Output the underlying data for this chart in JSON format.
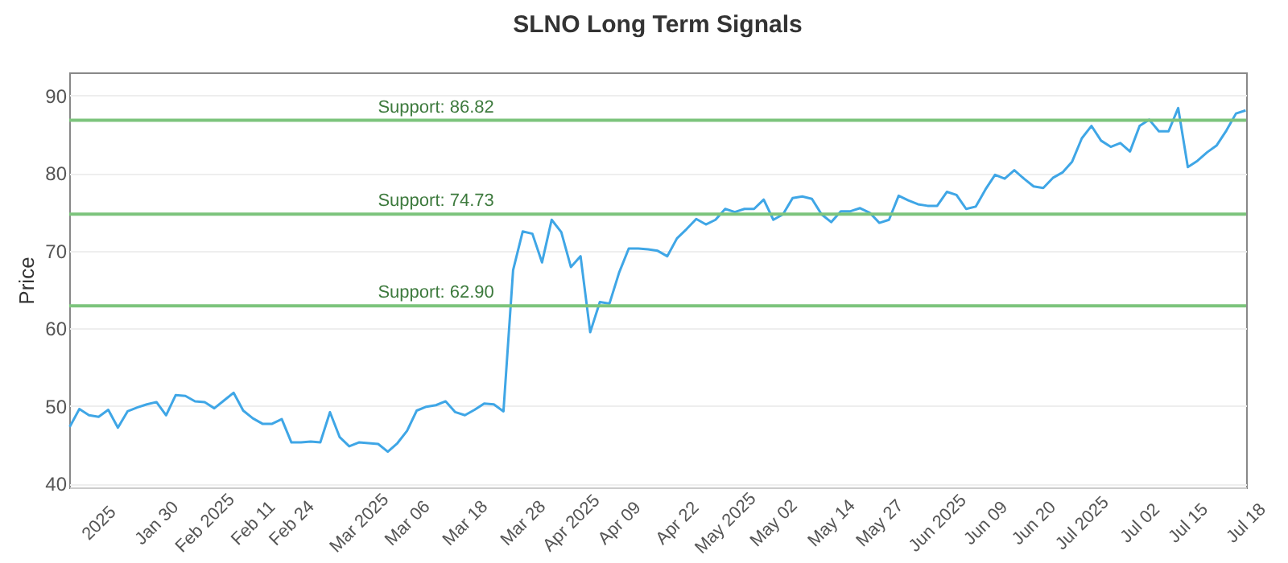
{
  "chart_data": {
    "type": "line",
    "title": "SLNO Long Term Signals",
    "ylabel": "Price",
    "categories": [
      null,
      null,
      null,
      "2025",
      null,
      null,
      null,
      null,
      null,
      "Jan 30",
      null,
      null,
      null,
      null,
      "Feb 2025",
      null,
      null,
      null,
      null,
      "Feb 11",
      null,
      null,
      null,
      "Feb 24",
      null,
      null,
      null,
      null,
      null,
      null,
      "Mar 2025",
      null,
      null,
      null,
      null,
      "Mar 06",
      null,
      null,
      null,
      null,
      null,
      "Mar 18",
      null,
      null,
      null,
      null,
      null,
      "Mar 28",
      null,
      null,
      null,
      null,
      "Apr 2025",
      null,
      null,
      null,
      null,
      "Apr 09",
      null,
      null,
      null,
      null,
      null,
      "Apr 22",
      null,
      null,
      null,
      null,
      "May 2025",
      null,
      null,
      null,
      null,
      "May 02",
      null,
      null,
      null,
      null,
      null,
      "May 14",
      null,
      null,
      null,
      null,
      "May 27",
      null,
      null,
      null,
      null,
      null,
      "Jun 2025",
      null,
      null,
      null,
      null,
      "Jun 09",
      null,
      null,
      null,
      null,
      "Jun 20",
      null,
      null,
      null,
      null,
      "Jul 2025",
      null,
      null,
      null,
      null,
      null,
      "Jul 02",
      null,
      null,
      null,
      null,
      "Jul 15",
      null,
      null,
      null,
      null,
      null,
      "Jul 18"
    ],
    "series": [
      {
        "color": "#3fa6e6",
        "values": [
          47.3,
          49.6,
          48.8,
          48.6,
          49.5,
          47.2,
          49.3,
          49.8,
          50.2,
          50.5,
          48.8,
          51.4,
          51.3,
          50.6,
          50.5,
          49.7,
          50.7,
          51.7,
          49.4,
          48.4,
          47.7,
          47.7,
          48.3,
          45.3,
          45.3,
          45.4,
          45.3,
          49.2,
          46.0,
          44.8,
          45.3,
          45.2,
          45.1,
          44.1,
          45.2,
          46.8,
          49.4,
          49.9,
          50.1,
          50.6,
          49.2,
          48.8,
          49.5,
          50.3,
          50.2,
          49.3,
          67.5,
          72.5,
          72.2,
          68.5,
          74.0,
          72.4,
          67.9,
          69.3,
          59.5,
          63.4,
          63.2,
          67.2,
          70.3,
          70.3,
          70.2,
          70.0,
          69.3,
          71.6,
          72.8,
          74.1,
          73.4,
          74.0,
          75.4,
          75.0,
          75.4,
          75.4,
          76.6,
          74.0,
          74.7,
          76.8,
          77.0,
          76.7,
          74.7,
          73.7,
          75.1,
          75.1,
          75.5,
          74.9,
          73.6,
          74.0,
          77.1,
          76.5,
          76.0,
          75.8,
          75.8,
          77.6,
          77.2,
          75.4,
          75.7,
          77.9,
          79.8,
          79.3,
          80.4,
          79.3,
          78.3,
          78.1,
          79.4,
          80.1,
          81.5,
          84.5,
          86.1,
          84.2,
          83.4,
          83.9,
          82.8,
          86.1,
          86.9,
          85.4,
          85.4,
          88.4,
          80.8,
          81.6,
          82.7,
          83.6,
          85.5,
          87.7,
          88.1
        ]
      }
    ],
    "ylim": [
      39.5,
      93
    ],
    "yticks": [
      40,
      50,
      60,
      70,
      80,
      90
    ],
    "grid": "y",
    "marker": "none",
    "line_style": "solid",
    "ref_lines": [
      {
        "axis": "y",
        "value": 86.82,
        "label": "Support: 86.82",
        "color": "#7cc47c"
      },
      {
        "axis": "y",
        "value": 74.73,
        "label": "Support: 74.73",
        "color": "#7cc47c"
      },
      {
        "axis": "y",
        "value": 62.9,
        "label": "Support: 62.90",
        "color": "#7cc47c"
      }
    ]
  }
}
